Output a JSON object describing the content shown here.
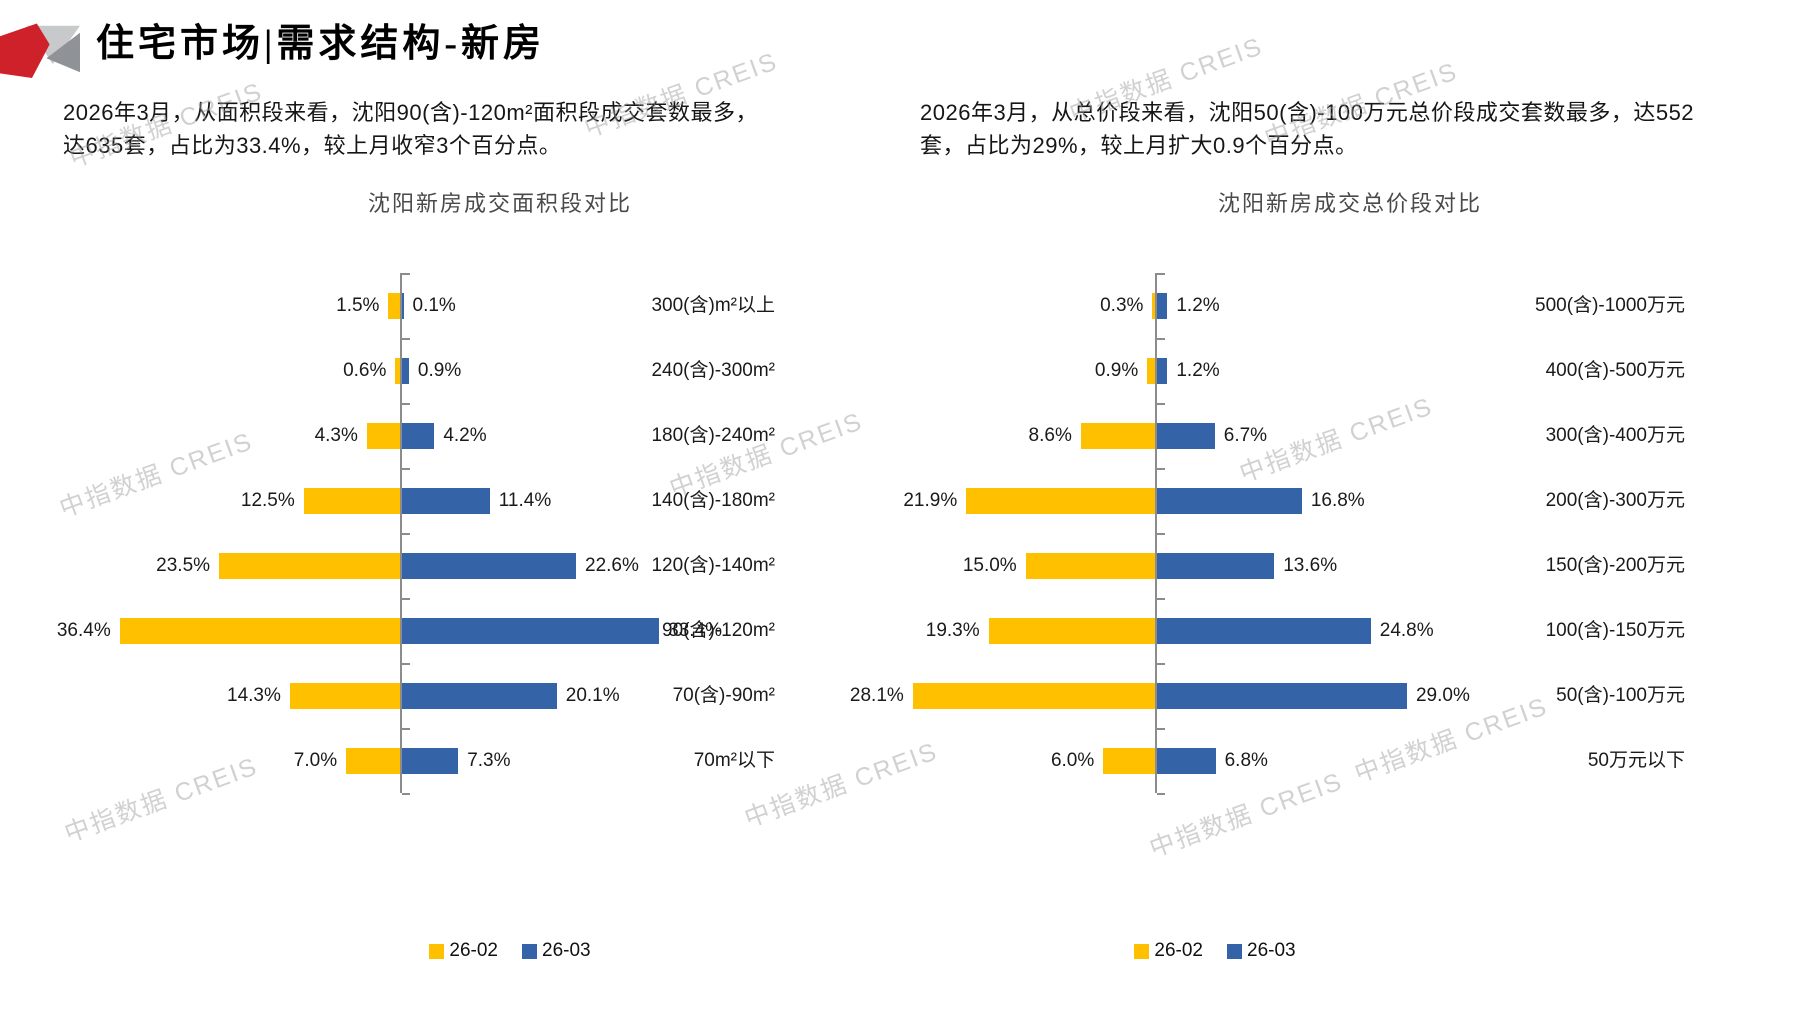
{
  "header": {
    "title": "住宅市场|需求结构-新房"
  },
  "watermark": {
    "text": "中指数据 CREIS"
  },
  "sections": {
    "left": {
      "summary": "2026年3月，从面积段来看，沈阳90(含)-120m²面积段成交套数最多，达635套，占比为33.4%，较上月收窄3个百分点。"
    },
    "right": {
      "summary": "2026年3月，从总价段来看，沈阳50(含)-100万元总价段成交套数最多，达552套，占比为29%，较上月扩大0.9个百分点。"
    }
  },
  "chart_data": [
    {
      "type": "bar",
      "orientation": "horizontal-tornado",
      "title": "沈阳新房成交面积段对比",
      "categories": [
        "300(含)m²以上",
        "240(含)-300m²",
        "180(含)-240m²",
        "140(含)-180m²",
        "120(含)-140m²",
        "90(含)-120m²",
        "70(含)-90m²",
        "70m²以下"
      ],
      "series": [
        {
          "name": "26-02",
          "color": "#FFC000",
          "side": "left",
          "values": [
            1.5,
            0.6,
            4.3,
            12.5,
            23.5,
            36.4,
            14.3,
            7.0
          ]
        },
        {
          "name": "26-03",
          "color": "#3563A8",
          "side": "right",
          "values": [
            0.1,
            0.9,
            4.2,
            11.4,
            22.6,
            33.4,
            20.1,
            7.3
          ]
        }
      ],
      "value_suffix": "%",
      "value_decimals": 1,
      "xlim_percent": [
        0,
        40
      ],
      "grid": false,
      "legend_position": "bottom"
    },
    {
      "type": "bar",
      "orientation": "horizontal-tornado",
      "title": "沈阳新房成交总价段对比",
      "categories": [
        "500(含)-1000万元",
        "400(含)-500万元",
        "300(含)-400万元",
        "200(含)-300万元",
        "150(含)-200万元",
        "100(含)-150万元",
        "50(含)-100万元",
        "50万元以下"
      ],
      "series": [
        {
          "name": "26-02",
          "color": "#FFC000",
          "side": "left",
          "values": [
            0.3,
            0.9,
            8.6,
            21.9,
            15.0,
            19.3,
            28.1,
            6.0
          ]
        },
        {
          "name": "26-03",
          "color": "#3563A8",
          "side": "right",
          "values": [
            1.2,
            1.2,
            6.7,
            16.8,
            13.6,
            24.8,
            29.0,
            6.8
          ]
        }
      ],
      "value_suffix": "%",
      "value_decimals": 1,
      "xlim_percent": [
        0,
        30
      ],
      "grid": false,
      "legend_position": "bottom"
    }
  ]
}
